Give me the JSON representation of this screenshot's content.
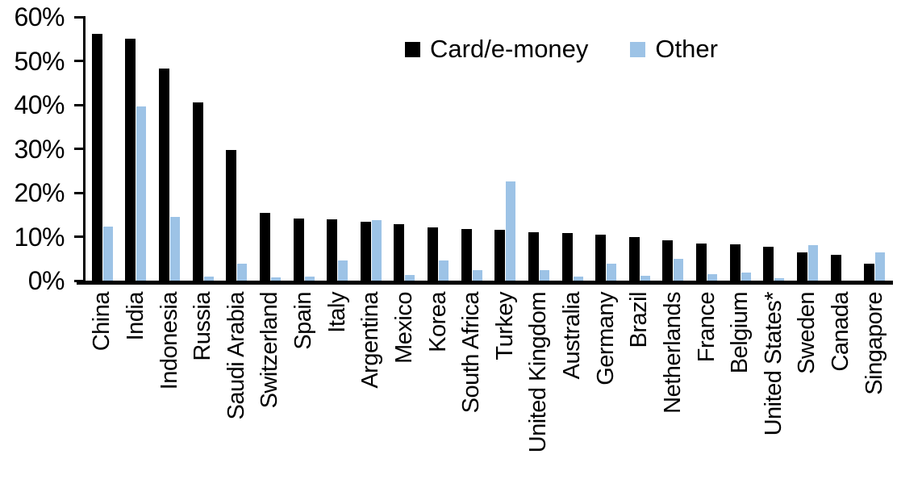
{
  "chart_data": {
    "type": "bar",
    "title": "",
    "xlabel": "",
    "ylabel": "",
    "legend_position": "top-center",
    "grid": false,
    "y_axis": {
      "min": 0,
      "max": 60,
      "tick_step": 10,
      "tick_labels": [
        "0%",
        "10%",
        "20%",
        "30%",
        "40%",
        "50%",
        "60%"
      ]
    },
    "categories": [
      "China",
      "India",
      "Indonesia",
      "Russia",
      "Saudi Arabia",
      "Switzerland",
      "Spain",
      "Italy",
      "Argentina",
      "Mexico",
      "Korea",
      "South Africa",
      "Turkey",
      "United Kingdom",
      "Australia",
      "Germany",
      "Brazil",
      "Netherlands",
      "France",
      "Belgium",
      "United States*",
      "Sweden",
      "Canada",
      "Singapore"
    ],
    "series": [
      {
        "name": "Card/e-money",
        "color": "#000000",
        "values": [
          56.2,
          55.0,
          48.2,
          40.5,
          29.8,
          15.5,
          14.1,
          14.0,
          13.4,
          12.8,
          12.1,
          11.7,
          11.5,
          11.0,
          10.8,
          10.5,
          9.9,
          9.1,
          8.5,
          8.2,
          7.7,
          6.5,
          5.9,
          3.8
        ]
      },
      {
        "name": "Other",
        "color": "#9DC3E6",
        "values": [
          12.3,
          39.6,
          14.5,
          1.0,
          3.9,
          0.7,
          0.9,
          4.5,
          13.8,
          1.3,
          4.5,
          2.3,
          22.5,
          2.4,
          0.9,
          3.8,
          1.1,
          4.9,
          1.5,
          1.9,
          0.5,
          8.0,
          0,
          6.5
        ]
      }
    ]
  }
}
